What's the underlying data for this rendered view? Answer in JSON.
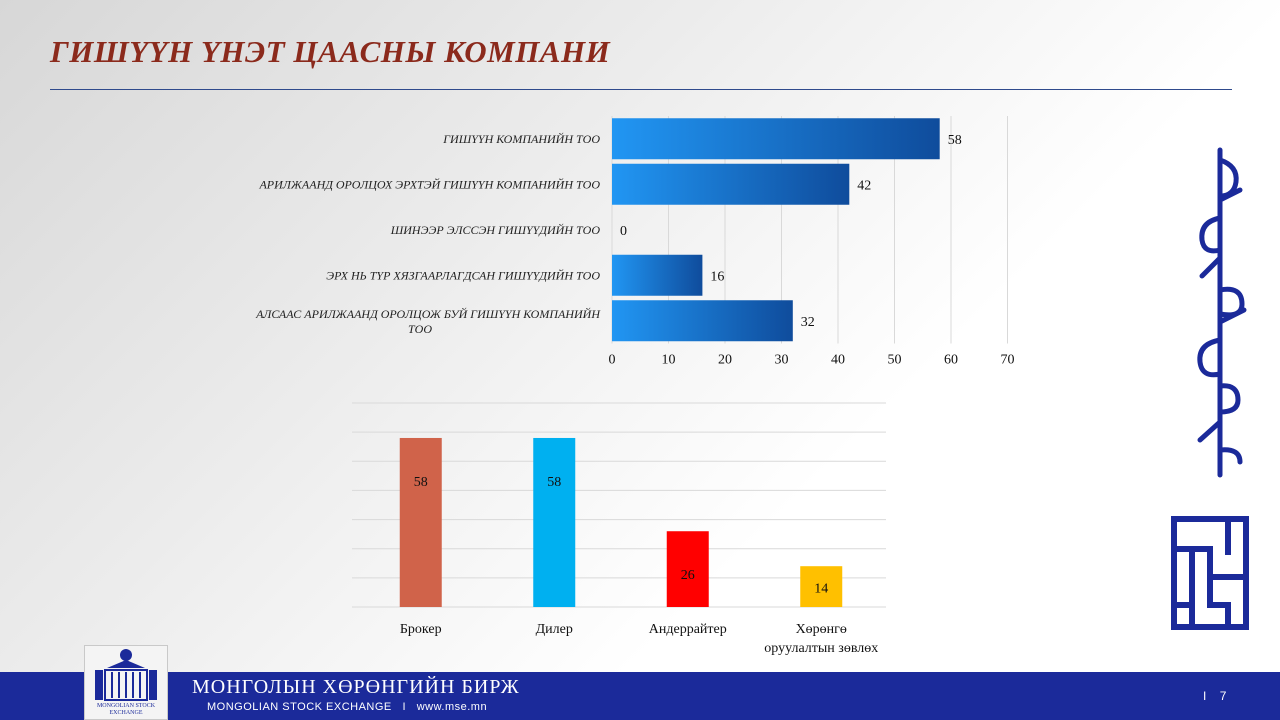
{
  "slide": {
    "title": "ГИШҮҮН ҮНЭТ ЦААСНЫ КОМПАНИ",
    "page_separator": "I",
    "page_number": "7"
  },
  "footer": {
    "org_name_mn": "МОНГОЛЫН ХӨРӨНГИЙН БИРЖ",
    "org_name_en": "MONGOLIAN STOCK EXCHANGE",
    "separator": "I",
    "website": "www.mse.mn",
    "logo_text": "MONGOLIAN STOCK EXCHANGE",
    "brand_color": "#1b2a9a"
  },
  "chart_data": [
    {
      "type": "bar",
      "orientation": "horizontal",
      "categories": [
        "ГИШҮҮН КОМПАНИЙН ТОО",
        "АРИЛЖААНД ОРОЛЦОХ ЭРХТЭЙ ГИШҮҮН КОМПАНИЙН ТОО",
        "ШИНЭЭР ЭЛССЭН ГИШҮҮДИЙН ТОО",
        "ЭРХ НЬ ТҮР ХЯЗГААРЛАГДСАН ГИШҮҮДИЙН ТОО",
        "АЛСААС АРИЛЖААНД ОРОЛЦОЖ БУЙ ГИШҮҮН КОМПАНИЙН ТОО"
      ],
      "values": [
        58,
        42,
        0,
        16,
        32
      ],
      "xlim": [
        0,
        70
      ],
      "xticks": [
        0,
        10,
        20,
        30,
        40,
        50,
        60,
        70
      ],
      "grid": true,
      "bar_color_light": "#2196f3",
      "bar_color_dark": "#0f4c9c"
    },
    {
      "type": "bar",
      "orientation": "vertical",
      "categories": [
        "Брокер",
        "Дилер",
        "Андеррайтер",
        "Хөрөнгө оруулалтын зөвлөх"
      ],
      "values": [
        58,
        58,
        26,
        14
      ],
      "colors": [
        "#d0634a",
        "#00b0f0",
        "#ff0000",
        "#ffc000"
      ],
      "grid": true
    }
  ]
}
